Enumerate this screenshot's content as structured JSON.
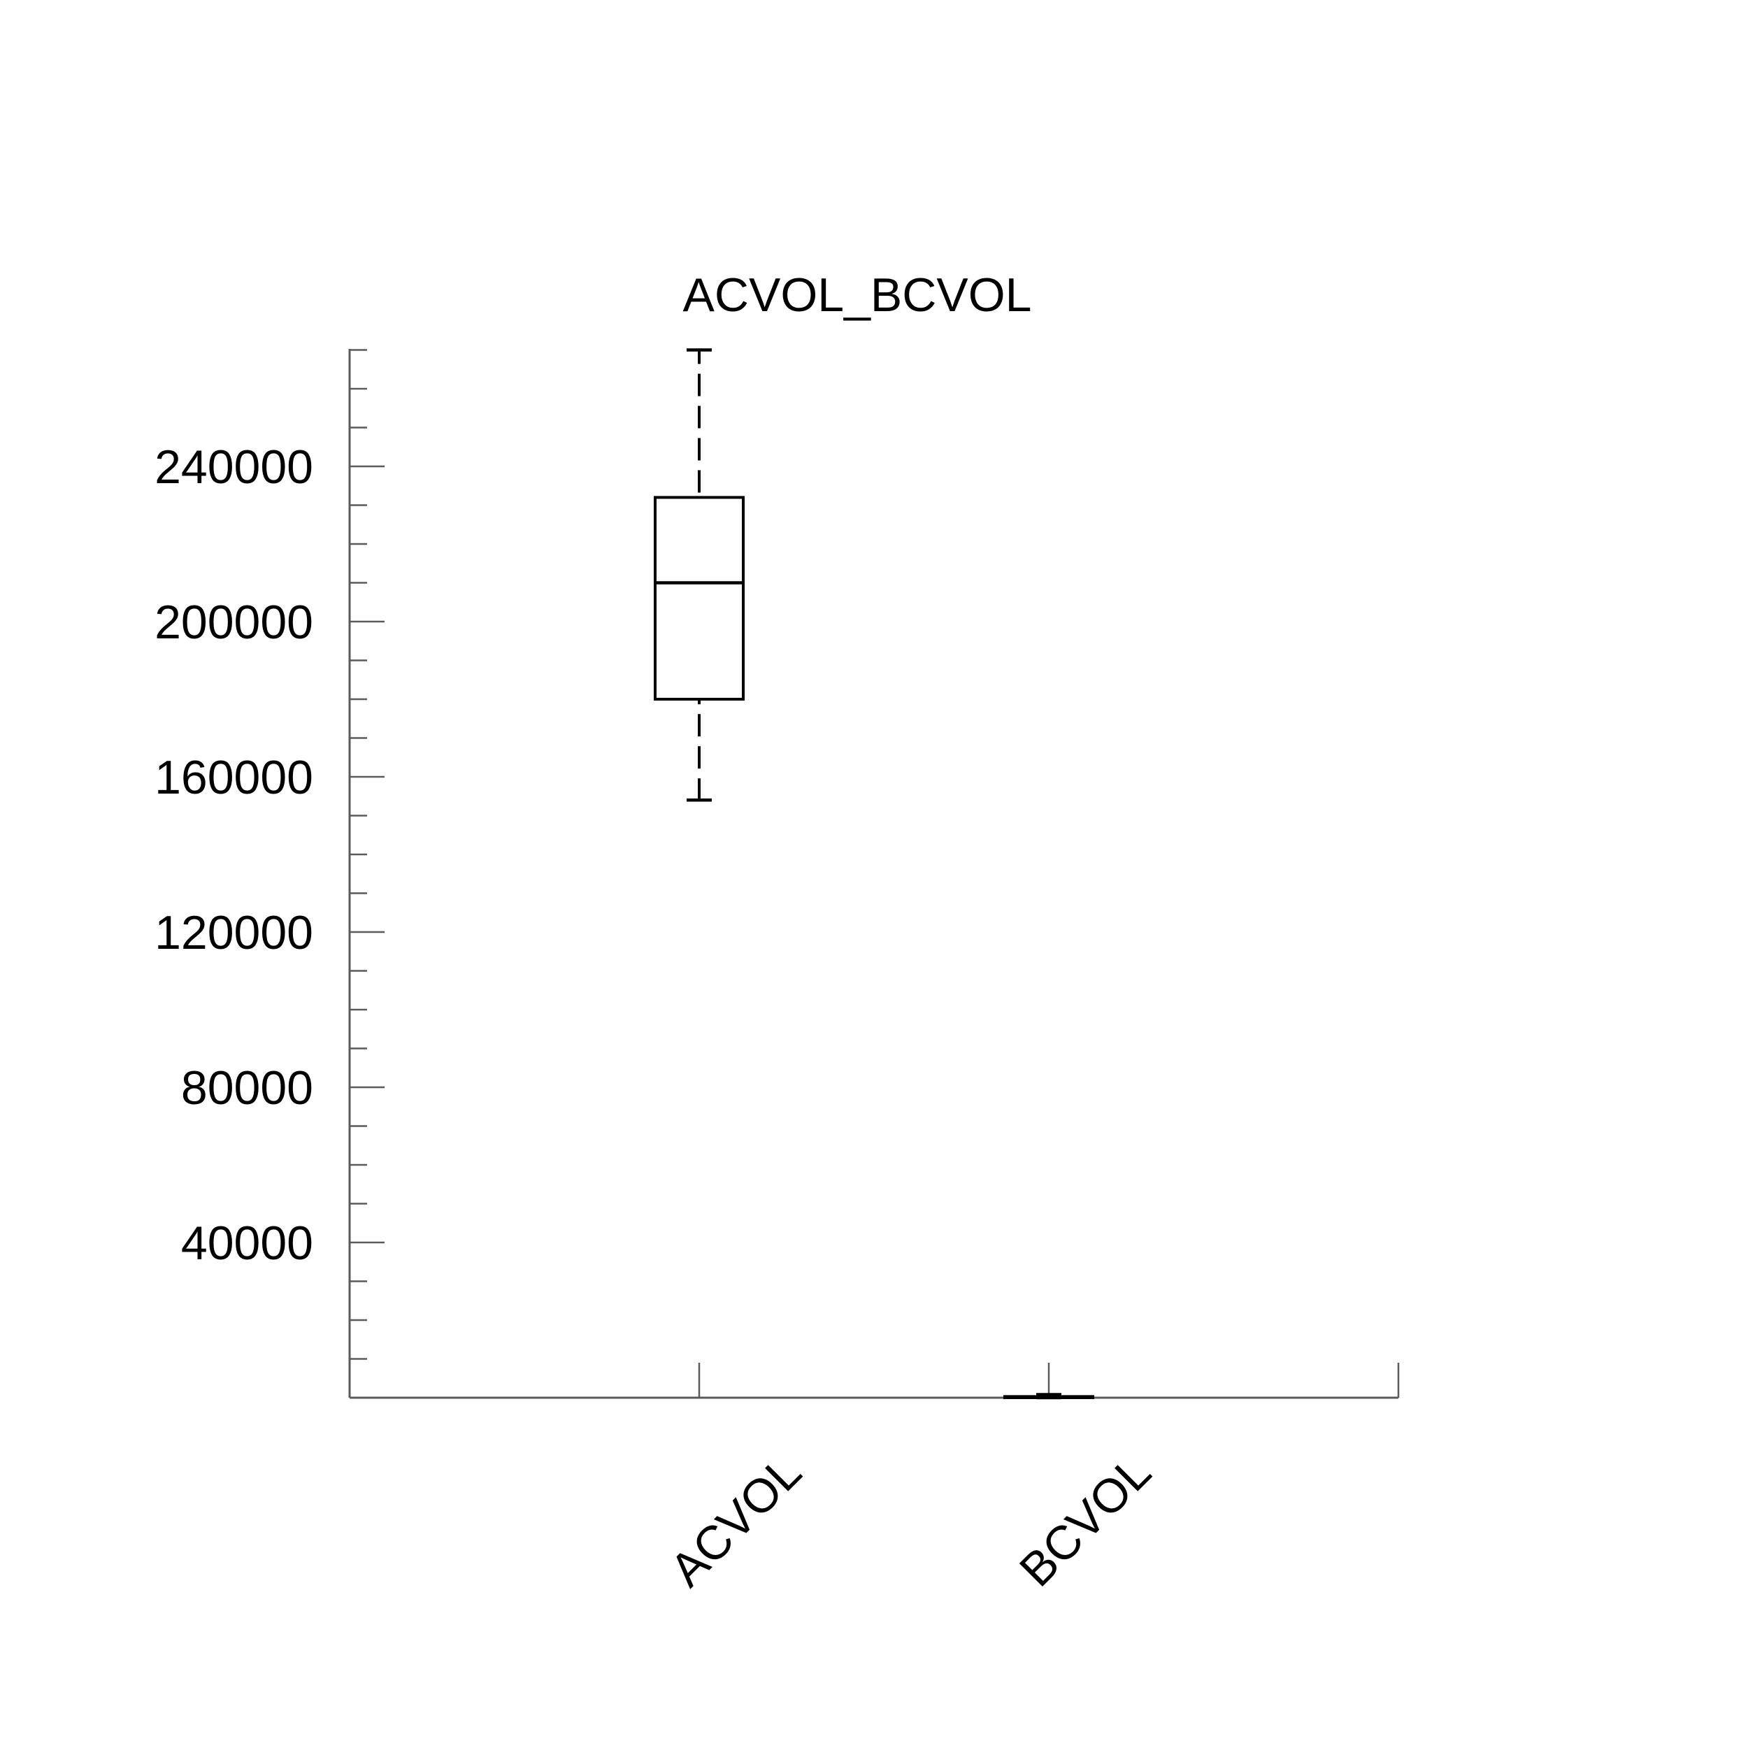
{
  "page": {
    "background": "#ffffff"
  },
  "chart_data": {
    "type": "boxplot",
    "title": "ACVOL_BCVOL",
    "categories": [
      "ACVOL",
      "BCVOL"
    ],
    "series": [
      {
        "name": "ACVOL",
        "whisker_low": 154000,
        "q1": 180000,
        "median": 210000,
        "q3": 232000,
        "whisker_high": 270000
      },
      {
        "name": "BCVOL",
        "whisker_low": 0,
        "q1": 0,
        "median": 100,
        "q3": 300,
        "whisker_high": 800
      }
    ],
    "y_axis": {
      "min": 0,
      "max": 270300,
      "minor_tick_step": 10000,
      "major_tick_step": 40000,
      "tick_labels": [
        "40000",
        "80000",
        "120000",
        "160000",
        "200000",
        "240000"
      ]
    },
    "x_axis": {
      "label_rotation_deg": -45
    },
    "grid": false,
    "legend": false,
    "colors": {
      "box_stroke": "#000000",
      "axis": "#5a5a5a",
      "text": "#000000",
      "background": "#ffffff"
    }
  }
}
